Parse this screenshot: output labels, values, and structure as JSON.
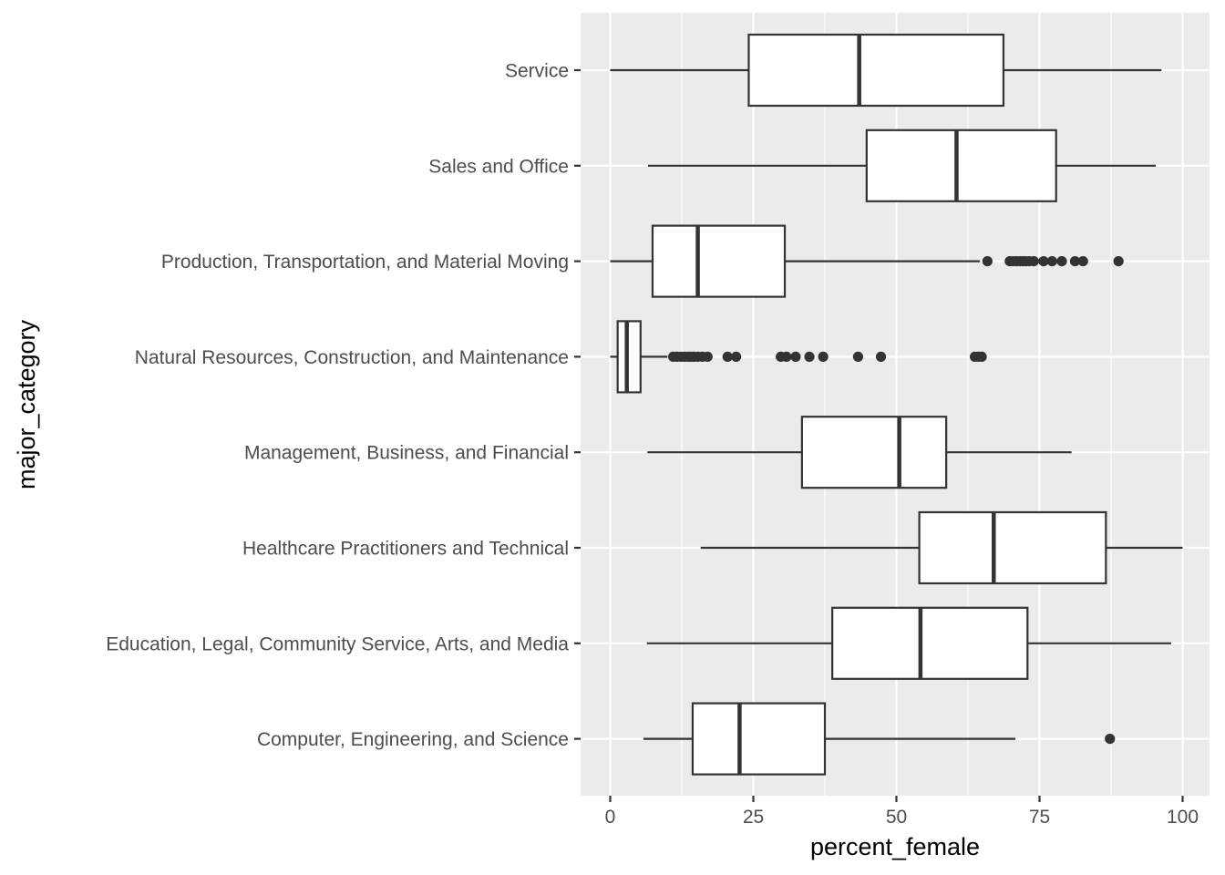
{
  "chart_data": {
    "type": "boxplot",
    "orientation": "horizontal",
    "xlabel": "percent_female",
    "ylabel": "major_category",
    "xlim": [
      -5,
      104
    ],
    "x_ticks": [
      0,
      25,
      50,
      75,
      100
    ],
    "x_tick_labels": [
      "0",
      "25",
      "50",
      "75",
      "100"
    ],
    "grid": true,
    "legend": "none",
    "colors": {
      "panel": "#ebebeb",
      "grid": "#ffffff",
      "box_fill": "#ffffff",
      "stroke": "#333333",
      "label": "#4d4d4d"
    },
    "categories": [
      "Service",
      "Sales and Office",
      "Production, Transportation, and Material Moving",
      "Natural Resources, Construction, and Maintenance",
      "Management, Business, and Financial",
      "Healthcare Practitioners and Technical",
      "Education, Legal, Community Service, Arts, and Media",
      "Computer, Engineering, and Science"
    ],
    "boxes": [
      {
        "category": "Service",
        "min": 0.0,
        "q1": 24.2,
        "median": 43.5,
        "q3": 68.7,
        "max": 96.3,
        "outliers": []
      },
      {
        "category": "Sales and Office",
        "min": 6.6,
        "q1": 44.8,
        "median": 60.5,
        "q3": 77.9,
        "max": 95.3,
        "outliers": []
      },
      {
        "category": "Production, Transportation, and Material Moving",
        "min": 0.0,
        "q1": 7.4,
        "median": 15.3,
        "q3": 30.5,
        "max": 64.6,
        "outliers": [
          65.9,
          69.8,
          70.4,
          71.0,
          71.6,
          72.1,
          72.6,
          73.2,
          74.0,
          75.7,
          77.2,
          78.9,
          81.2,
          82.6,
          88.8
        ]
      },
      {
        "category": "Natural Resources, Construction, and Maintenance",
        "min": 0.0,
        "q1": 1.3,
        "median": 2.9,
        "q3": 5.3,
        "max": 10.0,
        "outliers": [
          11.0,
          11.7,
          12.4,
          13.0,
          13.6,
          14.1,
          14.6,
          15.3,
          16.1,
          17.0,
          20.5,
          22.0,
          29.8,
          30.8,
          32.4,
          34.8,
          37.2,
          43.3,
          47.3,
          63.7,
          64.3,
          64.9
        ]
      },
      {
        "category": "Management, Business, and Financial",
        "min": 6.5,
        "q1": 33.5,
        "median": 50.5,
        "q3": 58.7,
        "max": 80.6,
        "outliers": []
      },
      {
        "category": "Healthcare Practitioners and Technical",
        "min": 15.8,
        "q1": 54.0,
        "median": 67.0,
        "q3": 86.6,
        "max": 100.0,
        "outliers": []
      },
      {
        "category": "Education, Legal, Community Service, Arts, and Media",
        "min": 6.4,
        "q1": 38.8,
        "median": 54.2,
        "q3": 72.9,
        "max": 98.0,
        "outliers": []
      },
      {
        "category": "Computer, Engineering, and Science",
        "min": 5.8,
        "q1": 14.4,
        "median": 22.6,
        "q3": 37.5,
        "max": 70.8,
        "outliers": [
          87.3
        ]
      }
    ]
  }
}
